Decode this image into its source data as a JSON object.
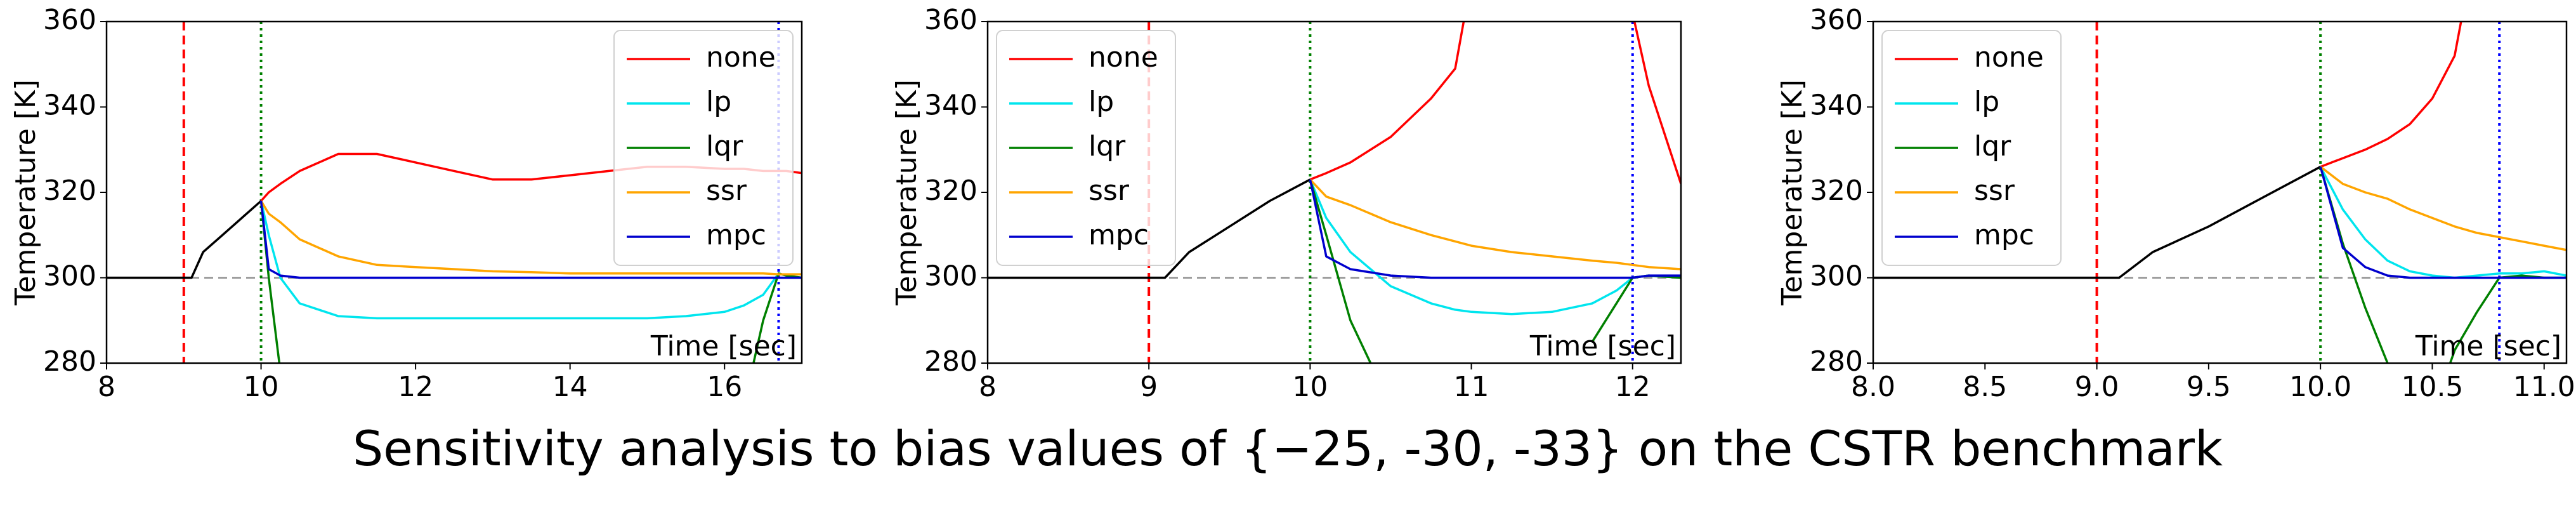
{
  "title": "Sensitivity analysis to bias values of {−25, -30, -33} on the CSTR benchmark",
  "chart_data": [
    {
      "type": "line",
      "xlabel": "Time [sec]",
      "ylabel": "Temperature [K]",
      "legend": "upper right",
      "xlim": [
        8,
        17
      ],
      "xticks": [
        8,
        10,
        12,
        14,
        16
      ],
      "ylim": [
        280,
        360
      ],
      "yticks": [
        280,
        300,
        320,
        340,
        360
      ],
      "hline": {
        "value": 300,
        "color": "#9e9e9e",
        "style": "dashed"
      },
      "vlines": [
        {
          "x": 9,
          "color": "#ff0000",
          "style": "dashed"
        },
        {
          "x": 10,
          "color": "#008000",
          "style": "dotted"
        },
        {
          "x": 16.7,
          "color": "#0000ff",
          "style": "dotted"
        }
      ],
      "x": [
        8,
        9,
        9.1,
        9.25,
        9.5,
        9.75,
        10,
        10.1,
        10.25,
        10.5,
        11,
        11.5,
        12,
        12.5,
        13,
        13.5,
        14,
        14.5,
        15,
        15.5,
        16,
        16.25,
        16.5,
        16.7,
        16.8,
        17
      ],
      "series": [
        {
          "color": "#000000",
          "values": [
            300,
            300,
            300,
            306,
            310,
            314,
            318,
            null,
            null,
            null,
            null,
            null,
            null,
            null,
            null,
            null,
            null,
            null,
            null,
            null,
            null,
            null,
            null,
            null,
            null,
            null
          ]
        },
        {
          "name": "none",
          "color": "#ff0000",
          "values": [
            null,
            null,
            null,
            null,
            null,
            null,
            318,
            320,
            322,
            325,
            329,
            329,
            327,
            325,
            323,
            323,
            324,
            325,
            326,
            326,
            325.5,
            325.5,
            325,
            325,
            325,
            324.5
          ]
        },
        {
          "name": "lp",
          "color": "#00e5ee",
          "values": [
            null,
            null,
            null,
            null,
            null,
            null,
            318,
            310,
            300,
            294,
            291,
            290.5,
            290.5,
            290.5,
            290.5,
            290.5,
            290.5,
            290.5,
            290.5,
            291,
            292,
            293.5,
            296,
            301,
            300.5,
            300
          ]
        },
        {
          "name": "lqr",
          "color": "#008000",
          "values": [
            null,
            null,
            null,
            null,
            null,
            null,
            318,
            300,
            278,
            265,
            null,
            null,
            null,
            null,
            null,
            null,
            null,
            null,
            null,
            null,
            null,
            270,
            290,
            301,
            300.5,
            300
          ]
        },
        {
          "name": "ssr",
          "color": "#ffa500",
          "values": [
            null,
            null,
            null,
            null,
            null,
            null,
            318,
            315,
            313,
            309,
            305,
            303,
            302.5,
            302,
            301.5,
            301.3,
            301,
            301,
            301,
            301,
            301,
            301,
            301,
            300.8,
            300.8,
            300.8
          ]
        },
        {
          "name": "mpc",
          "color": "#0000cd",
          "values": [
            null,
            null,
            null,
            null,
            null,
            null,
            318,
            302,
            300.5,
            300,
            300,
            300,
            300,
            300,
            300,
            300,
            300,
            300,
            300,
            300,
            300,
            300,
            300,
            300,
            300,
            300
          ]
        }
      ]
    },
    {
      "type": "line",
      "xlabel": "Time [sec]",
      "ylabel": "Temperature [K]",
      "legend": "upper left",
      "xlim": [
        8,
        12.3
      ],
      "xticks": [
        8,
        9,
        10,
        11,
        12
      ],
      "ylim": [
        280,
        360
      ],
      "yticks": [
        280,
        300,
        320,
        340,
        360
      ],
      "hline": {
        "value": 300,
        "color": "#9e9e9e",
        "style": "dashed"
      },
      "vlines": [
        {
          "x": 9,
          "color": "#ff0000",
          "style": "dashed"
        },
        {
          "x": 10,
          "color": "#008000",
          "style": "dotted"
        },
        {
          "x": 12,
          "color": "#0000ff",
          "style": "dotted"
        }
      ],
      "x": [
        8,
        9,
        9.1,
        9.25,
        9.5,
        9.75,
        10,
        10.1,
        10.25,
        10.5,
        10.75,
        10.9,
        11,
        11.25,
        11.5,
        11.75,
        11.9,
        12,
        12.1,
        12.3
      ],
      "series": [
        {
          "color": "#000000",
          "values": [
            300,
            300,
            300,
            306,
            312,
            318,
            323,
            null,
            null,
            null,
            null,
            null,
            null,
            null,
            null,
            null,
            null,
            null,
            null,
            null
          ]
        },
        {
          "name": "none",
          "color": "#ff0000",
          "values": [
            null,
            null,
            null,
            null,
            null,
            null,
            323,
            324.5,
            327,
            333,
            342,
            349,
            370,
            null,
            null,
            null,
            null,
            362,
            345,
            322
          ]
        },
        {
          "name": "lp",
          "color": "#00e5ee",
          "values": [
            null,
            null,
            null,
            null,
            null,
            null,
            323,
            314,
            306,
            298,
            294,
            292.5,
            292,
            291.5,
            292,
            294,
            297,
            300,
            300.5,
            300
          ]
        },
        {
          "name": "lqr",
          "color": "#008000",
          "values": [
            null,
            null,
            null,
            null,
            null,
            null,
            323,
            310,
            290,
            270,
            null,
            null,
            null,
            null,
            null,
            285,
            294,
            300,
            300.5,
            300
          ]
        },
        {
          "name": "ssr",
          "color": "#ffa500",
          "values": [
            null,
            null,
            null,
            null,
            null,
            null,
            323,
            319,
            317,
            313,
            310,
            308.5,
            307.5,
            306,
            305,
            304,
            303.5,
            303,
            302.5,
            302
          ]
        },
        {
          "name": "mpc",
          "color": "#0000cd",
          "values": [
            null,
            null,
            null,
            null,
            null,
            null,
            323,
            305,
            302,
            300.5,
            300,
            300,
            300,
            300,
            300,
            300,
            300,
            300,
            300.5,
            300.5
          ]
        }
      ]
    },
    {
      "type": "line",
      "xlabel": "Time [sec]",
      "ylabel": "Temperature [K]",
      "legend": "upper left",
      "xlim": [
        8,
        11.1
      ],
      "xticks": [
        {
          "value": 8,
          "label": "8.0"
        },
        8.5,
        {
          "value": 9,
          "label": "9.0"
        },
        9.5,
        {
          "value": 10,
          "label": "10.0"
        },
        10.5,
        {
          "value": 11,
          "label": "11.0"
        }
      ],
      "ylim": [
        280,
        360
      ],
      "yticks": [
        280,
        300,
        320,
        340,
        360
      ],
      "hline": {
        "value": 300,
        "color": "#9e9e9e",
        "style": "dashed"
      },
      "vlines": [
        {
          "x": 9,
          "color": "#ff0000",
          "style": "dashed"
        },
        {
          "x": 10,
          "color": "#008000",
          "style": "dotted"
        },
        {
          "x": 10.8,
          "color": "#0000ff",
          "style": "dotted"
        }
      ],
      "x": [
        8,
        9,
        9.1,
        9.25,
        9.5,
        9.75,
        10,
        10.1,
        10.2,
        10.3,
        10.4,
        10.5,
        10.6,
        10.7,
        10.8,
        10.9,
        11,
        11.1
      ],
      "series": [
        {
          "color": "#000000",
          "values": [
            300,
            300,
            300,
            306,
            312,
            319,
            326,
            null,
            null,
            null,
            null,
            null,
            null,
            null,
            null,
            null,
            null,
            null
          ]
        },
        {
          "name": "none",
          "color": "#ff0000",
          "values": [
            null,
            null,
            null,
            null,
            null,
            null,
            326,
            328,
            330,
            332.5,
            336,
            342,
            352,
            380,
            null,
            null,
            null,
            null
          ]
        },
        {
          "name": "lp",
          "color": "#00e5ee",
          "values": [
            null,
            null,
            null,
            null,
            null,
            null,
            326,
            316,
            309,
            304,
            301.5,
            300.5,
            300,
            300.5,
            301,
            301,
            301.5,
            300.5
          ]
        },
        {
          "name": "lqr",
          "color": "#008000",
          "values": [
            null,
            null,
            null,
            null,
            null,
            null,
            326,
            308,
            293,
            280,
            268,
            268,
            283,
            292,
            300,
            300.5,
            300,
            300
          ]
        },
        {
          "name": "ssr",
          "color": "#ffa500",
          "values": [
            null,
            null,
            null,
            null,
            null,
            null,
            326,
            322,
            320,
            318.5,
            316,
            314,
            312,
            310.5,
            309.5,
            308.5,
            307.5,
            306.5
          ]
        },
        {
          "name": "mpc",
          "color": "#0000cd",
          "values": [
            null,
            null,
            null,
            null,
            null,
            null,
            326,
            307,
            302.5,
            300.5,
            300,
            300,
            300,
            300,
            300,
            300,
            300,
            300
          ]
        }
      ]
    }
  ]
}
